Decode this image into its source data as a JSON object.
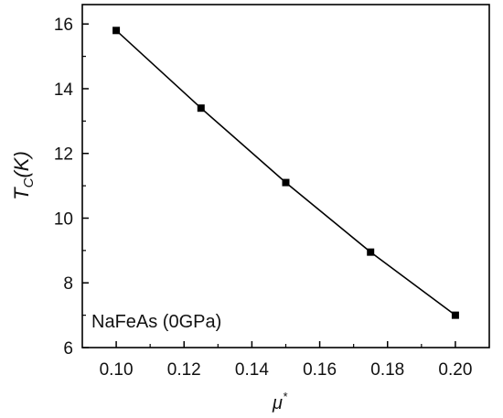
{
  "chart_data": {
    "type": "line",
    "annotation": "NaFeAs (0GPa)",
    "x": [
      0.1,
      0.125,
      0.15,
      0.175,
      0.2
    ],
    "y": [
      15.8,
      13.4,
      11.1,
      8.95,
      7.0
    ],
    "xlim": [
      0.09,
      0.21
    ],
    "ylim": [
      6,
      16.6
    ],
    "xticks": [
      0.1,
      0.12,
      0.14,
      0.16,
      0.18,
      0.2
    ],
    "xtick_labels": [
      "0.10",
      "0.12",
      "0.14",
      "0.16",
      "0.18",
      "0.20"
    ],
    "yticks": [
      6,
      8,
      10,
      12,
      14,
      16
    ],
    "ytick_labels": [
      "6",
      "8",
      "10",
      "12",
      "14",
      "16"
    ],
    "ylabel": {
      "main": "T",
      "subscript": "C",
      "suffix": "(K)"
    },
    "xlabel": {
      "main": "μ",
      "superscript": "*"
    },
    "marker": "square",
    "line_color": "#000000",
    "marker_color": "#000000",
    "grid": false,
    "legend": false
  }
}
